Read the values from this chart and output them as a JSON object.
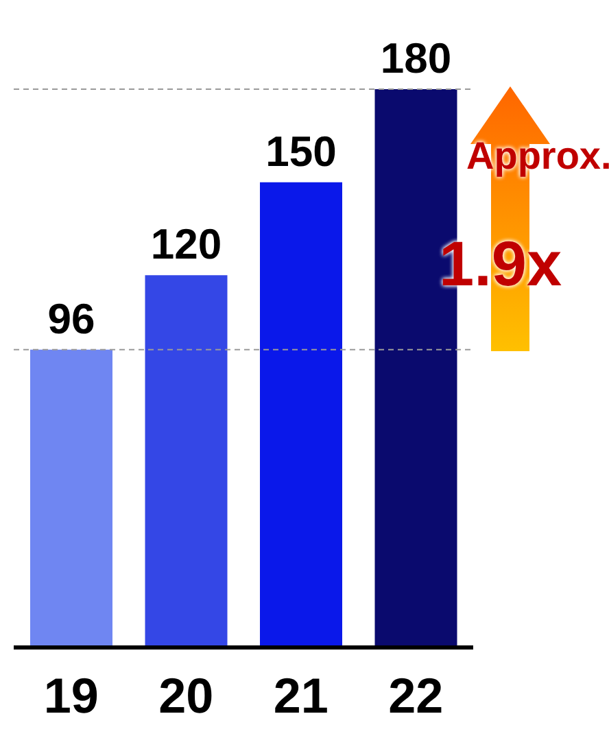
{
  "chart_data": {
    "type": "bar",
    "categories": [
      "19",
      "20",
      "21",
      "22"
    ],
    "values": [
      96,
      120,
      150,
      180
    ],
    "colors": [
      "#6f86f2",
      "#3447e6",
      "#0a18ea",
      "#0a0a6e"
    ],
    "ylim": [
      0,
      180
    ],
    "data_labels": true,
    "tick_labels": "x",
    "grid": false,
    "legend": false,
    "ref_lines": [
      {
        "axis": "y",
        "value": 96,
        "color": "#9a9a9a",
        "line_style": "dashed"
      },
      {
        "axis": "y",
        "value": 180,
        "color": "#9a9a9a",
        "line_style": "dashed"
      }
    ],
    "annotations": [
      "Approx.",
      "1.9x"
    ]
  }
}
